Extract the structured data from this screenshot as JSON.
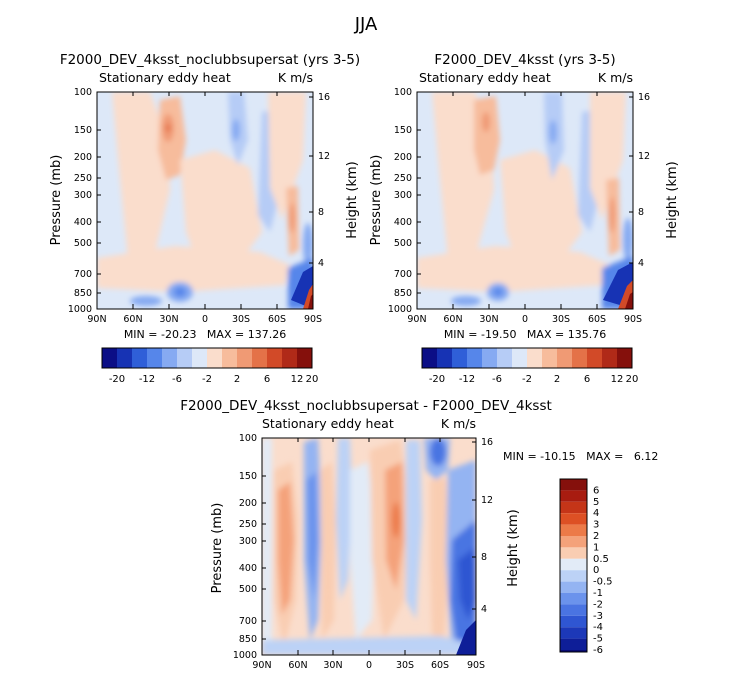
{
  "page_title": "JJA",
  "chart_data": [
    {
      "type": "heatmap",
      "title": "F2000_DEV_4ksst_noclubbsupersat (yrs 3-5)",
      "subtitle_left": "Stationary eddy heat",
      "subtitle_right": "K m/s",
      "ylabel": "Pressure (mb)",
      "y2label": "Height (km)",
      "x_ticks": [
        "90N",
        "60N",
        "30N",
        "0",
        "30S",
        "60S",
        "90S"
      ],
      "y_ticks": [
        "100",
        "150",
        "200",
        "250",
        "300",
        "400",
        "500",
        "700",
        "850",
        "1000"
      ],
      "y2_ticks": [
        "16",
        "12",
        "8",
        "4"
      ],
      "stats": "MIN = -20.23   MAX = 137.26",
      "colorbar_labels": [
        "-20",
        "-12",
        "-6",
        "-2",
        "2",
        "6",
        "12",
        "20"
      ]
    },
    {
      "type": "heatmap",
      "title": "F2000_DEV_4ksst (yrs 3-5)",
      "subtitle_left": "Stationary eddy heat",
      "subtitle_right": "K m/s",
      "ylabel": "Pressure (mb)",
      "y2label": "Height (km)",
      "x_ticks": [
        "90N",
        "60N",
        "30N",
        "0",
        "30S",
        "60S",
        "90S"
      ],
      "y_ticks": [
        "100",
        "150",
        "200",
        "250",
        "300",
        "400",
        "500",
        "700",
        "850",
        "1000"
      ],
      "y2_ticks": [
        "16",
        "12",
        "8",
        "4"
      ],
      "stats": "MIN = -19.50   MAX = 135.76",
      "colorbar_labels": [
        "-20",
        "-12",
        "-6",
        "-2",
        "2",
        "6",
        "12",
        "20"
      ]
    },
    {
      "type": "heatmap",
      "title": "F2000_DEV_4ksst_noclubbsupersat - F2000_DEV_4ksst",
      "subtitle_left": "Stationary eddy heat",
      "subtitle_right": "K m/s",
      "ylabel": "Pressure (mb)",
      "y2label": "Height (km)",
      "x_ticks": [
        "90N",
        "60N",
        "30N",
        "0",
        "30S",
        "60S",
        "90S"
      ],
      "y_ticks": [
        "100",
        "150",
        "200",
        "250",
        "300",
        "400",
        "500",
        "700",
        "850",
        "1000"
      ],
      "y2_ticks": [
        "16",
        "12",
        "8",
        "4"
      ],
      "stats": "MIN = -10.15   MAX =   6.12",
      "colorbar_labels": [
        "6",
        "5",
        "4",
        "3",
        "2",
        "1",
        "0.5",
        "0",
        "-0.5",
        "-1",
        "-2",
        "-3",
        "-4",
        "-5",
        "-6"
      ]
    }
  ],
  "colors": {
    "scale14": [
      "#0b0e86",
      "#1733b4",
      "#2f5fd8",
      "#5686ea",
      "#86aaf2",
      "#b6ccf6",
      "#dde8f8",
      "#faddcc",
      "#f7bc9c",
      "#f09a74",
      "#e47248",
      "#d24a28",
      "#b02a18",
      "#85100c"
    ],
    "scale16": [
      "#85100c",
      "#a81c10",
      "#c53518",
      "#dd5024",
      "#ec7a48",
      "#f4a27a",
      "#f9cdb2",
      "#e2ebf7",
      "#bcd2f6",
      "#94b4f2",
      "#6b93ec",
      "#4a74e2",
      "#2f56d2",
      "#1c38b8",
      "#0e1e98",
      "#070a72"
    ]
  }
}
